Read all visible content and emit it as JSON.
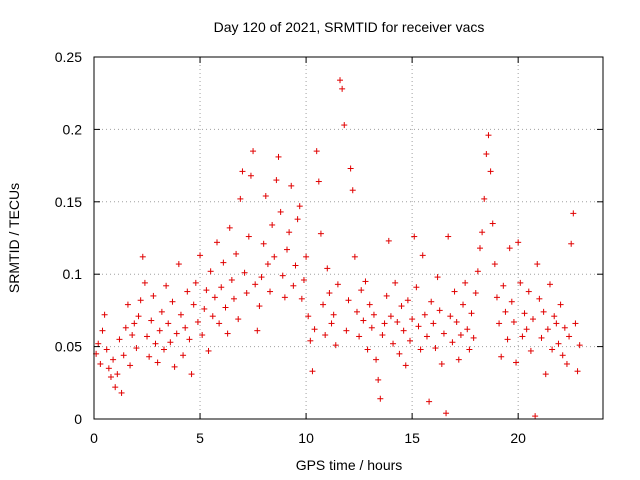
{
  "chart_data": {
    "type": "scatter",
    "title": "Day 120 of 2021, SRMTID for receiver vacs",
    "xlabel": "GPS time / hours",
    "ylabel": "SRMTID / TECUs",
    "xlim": [
      0,
      24
    ],
    "ylim": [
      0,
      0.25
    ],
    "xticks": [
      0,
      5,
      10,
      15,
      20
    ],
    "xtick_labels": [
      "0",
      "5",
      "10",
      "15",
      "20"
    ],
    "yticks": [
      0,
      0.05,
      0.1,
      0.15,
      0.2,
      0.25
    ],
    "ytick_labels": [
      "0",
      "0.05",
      "0.1",
      "0.15",
      "0.2",
      "0.25"
    ],
    "grid": true,
    "marker": "+",
    "color": "#e00000",
    "series": [
      {
        "name": "SRMTID",
        "points": [
          [
            0.1,
            0.045
          ],
          [
            0.2,
            0.052
          ],
          [
            0.3,
            0.038
          ],
          [
            0.4,
            0.061
          ],
          [
            0.5,
            0.072
          ],
          [
            0.6,
            0.048
          ],
          [
            0.7,
            0.035
          ],
          [
            0.8,
            0.029
          ],
          [
            0.9,
            0.041
          ],
          [
            1.0,
            0.022
          ],
          [
            1.1,
            0.031
          ],
          [
            1.2,
            0.055
          ],
          [
            1.3,
            0.018
          ],
          [
            1.4,
            0.044
          ],
          [
            1.5,
            0.063
          ],
          [
            1.6,
            0.079
          ],
          [
            1.7,
            0.037
          ],
          [
            1.8,
            0.058
          ],
          [
            1.9,
            0.066
          ],
          [
            2.0,
            0.049
          ],
          [
            2.1,
            0.071
          ],
          [
            2.2,
            0.082
          ],
          [
            2.3,
            0.112
          ],
          [
            2.4,
            0.094
          ],
          [
            2.5,
            0.057
          ],
          [
            2.6,
            0.043
          ],
          [
            2.7,
            0.068
          ],
          [
            2.8,
            0.085
          ],
          [
            2.9,
            0.052
          ],
          [
            3.0,
            0.039
          ],
          [
            3.1,
            0.061
          ],
          [
            3.2,
            0.074
          ],
          [
            3.3,
            0.048
          ],
          [
            3.4,
            0.092
          ],
          [
            3.5,
            0.066
          ],
          [
            3.6,
            0.053
          ],
          [
            3.7,
            0.081
          ],
          [
            3.8,
            0.036
          ],
          [
            3.9,
            0.059
          ],
          [
            4.0,
            0.107
          ],
          [
            4.1,
            0.072
          ],
          [
            4.2,
            0.044
          ],
          [
            4.3,
            0.063
          ],
          [
            4.4,
            0.088
          ],
          [
            4.5,
            0.055
          ],
          [
            4.6,
            0.031
          ],
          [
            4.7,
            0.079
          ],
          [
            4.8,
            0.094
          ],
          [
            4.9,
            0.067
          ],
          [
            5.0,
            0.113
          ],
          [
            5.1,
            0.058
          ],
          [
            5.2,
            0.076
          ],
          [
            5.3,
            0.089
          ],
          [
            5.4,
            0.047
          ],
          [
            5.5,
            0.102
          ],
          [
            5.6,
            0.071
          ],
          [
            5.7,
            0.084
          ],
          [
            5.8,
            0.122
          ],
          [
            5.9,
            0.066
          ],
          [
            6.0,
            0.091
          ],
          [
            6.1,
            0.108
          ],
          [
            6.2,
            0.077
          ],
          [
            6.3,
            0.059
          ],
          [
            6.4,
            0.132
          ],
          [
            6.5,
            0.096
          ],
          [
            6.6,
            0.083
          ],
          [
            6.7,
            0.114
          ],
          [
            6.8,
            0.069
          ],
          [
            6.9,
            0.152
          ],
          [
            7.0,
            0.171
          ],
          [
            7.1,
            0.101
          ],
          [
            7.2,
            0.087
          ],
          [
            7.3,
            0.126
          ],
          [
            7.4,
            0.168
          ],
          [
            7.5,
            0.185
          ],
          [
            7.6,
            0.093
          ],
          [
            7.7,
            0.061
          ],
          [
            7.8,
            0.078
          ],
          [
            7.9,
            0.098
          ],
          [
            8.0,
            0.121
          ],
          [
            8.1,
            0.154
          ],
          [
            8.2,
            0.107
          ],
          [
            8.3,
            0.088
          ],
          [
            8.4,
            0.134
          ],
          [
            8.5,
            0.112
          ],
          [
            8.6,
            0.165
          ],
          [
            8.7,
            0.181
          ],
          [
            8.8,
            0.143
          ],
          [
            8.9,
            0.099
          ],
          [
            9.0,
            0.084
          ],
          [
            9.1,
            0.117
          ],
          [
            9.2,
            0.129
          ],
          [
            9.3,
            0.161
          ],
          [
            9.4,
            0.092
          ],
          [
            9.5,
            0.106
          ],
          [
            9.6,
            0.138
          ],
          [
            9.7,
            0.147
          ],
          [
            9.8,
            0.083
          ],
          [
            9.9,
            0.096
          ],
          [
            10.0,
            0.112
          ],
          [
            10.1,
            0.071
          ],
          [
            10.2,
            0.054
          ],
          [
            10.3,
            0.033
          ],
          [
            10.4,
            0.062
          ],
          [
            10.5,
            0.185
          ],
          [
            10.6,
            0.164
          ],
          [
            10.7,
            0.128
          ],
          [
            10.8,
            0.079
          ],
          [
            10.9,
            0.058
          ],
          [
            11.0,
            0.104
          ],
          [
            11.1,
            0.087
          ],
          [
            11.2,
            0.066
          ],
          [
            11.3,
            0.072
          ],
          [
            11.4,
            0.051
          ],
          [
            11.5,
            0.093
          ],
          [
            11.6,
            0.234
          ],
          [
            11.7,
            0.228
          ],
          [
            11.8,
            0.203
          ],
          [
            11.9,
            0.061
          ],
          [
            12.0,
            0.082
          ],
          [
            12.1,
            0.173
          ],
          [
            12.2,
            0.158
          ],
          [
            12.3,
            0.112
          ],
          [
            12.4,
            0.074
          ],
          [
            12.5,
            0.057
          ],
          [
            12.6,
            0.089
          ],
          [
            12.7,
            0.068
          ],
          [
            12.8,
            0.095
          ],
          [
            12.9,
            0.048
          ],
          [
            13.0,
            0.079
          ],
          [
            13.1,
            0.063
          ],
          [
            13.2,
            0.072
          ],
          [
            13.3,
            0.041
          ],
          [
            13.4,
            0.027
          ],
          [
            13.5,
            0.014
          ],
          [
            13.6,
            0.058
          ],
          [
            13.7,
            0.066
          ],
          [
            13.8,
            0.085
          ],
          [
            13.9,
            0.123
          ],
          [
            14.0,
            0.071
          ],
          [
            14.1,
            0.052
          ],
          [
            14.2,
            0.094
          ],
          [
            14.3,
            0.067
          ],
          [
            14.4,
            0.045
          ],
          [
            14.5,
            0.078
          ],
          [
            14.6,
            0.061
          ],
          [
            14.7,
            0.037
          ],
          [
            14.8,
            0.082
          ],
          [
            14.9,
            0.054
          ],
          [
            15.0,
            0.069
          ],
          [
            15.1,
            0.126
          ],
          [
            15.2,
            0.091
          ],
          [
            15.3,
            0.064
          ],
          [
            15.4,
            0.048
          ],
          [
            15.5,
            0.113
          ],
          [
            15.6,
            0.072
          ],
          [
            15.7,
            0.057
          ],
          [
            15.8,
            0.012
          ],
          [
            15.9,
            0.081
          ],
          [
            16.0,
            0.066
          ],
          [
            16.1,
            0.049
          ],
          [
            16.2,
            0.098
          ],
          [
            16.3,
            0.075
          ],
          [
            16.4,
            0.038
          ],
          [
            16.5,
            0.059
          ],
          [
            16.6,
            0.004
          ],
          [
            16.7,
            0.126
          ],
          [
            16.8,
            0.071
          ],
          [
            16.9,
            0.053
          ],
          [
            17.0,
            0.088
          ],
          [
            17.1,
            0.067
          ],
          [
            17.2,
            0.041
          ],
          [
            17.3,
            0.058
          ],
          [
            17.4,
            0.079
          ],
          [
            17.5,
            0.094
          ],
          [
            17.6,
            0.062
          ],
          [
            17.7,
            0.048
          ],
          [
            17.8,
            0.073
          ],
          [
            17.9,
            0.056
          ],
          [
            18.0,
            0.087
          ],
          [
            18.1,
            0.102
          ],
          [
            18.2,
            0.118
          ],
          [
            18.3,
            0.129
          ],
          [
            18.4,
            0.152
          ],
          [
            18.5,
            0.183
          ],
          [
            18.6,
            0.196
          ],
          [
            18.7,
            0.171
          ],
          [
            18.8,
            0.135
          ],
          [
            18.9,
            0.107
          ],
          [
            19.0,
            0.084
          ],
          [
            19.1,
            0.066
          ],
          [
            19.2,
            0.043
          ],
          [
            19.3,
            0.092
          ],
          [
            19.4,
            0.074
          ],
          [
            19.5,
            0.055
          ],
          [
            19.6,
            0.118
          ],
          [
            19.7,
            0.081
          ],
          [
            19.8,
            0.067
          ],
          [
            19.9,
            0.039
          ],
          [
            20.0,
            0.122
          ],
          [
            20.1,
            0.094
          ],
          [
            20.2,
            0.057
          ],
          [
            20.3,
            0.073
          ],
          [
            20.4,
            0.062
          ],
          [
            20.5,
            0.088
          ],
          [
            20.6,
            0.047
          ],
          [
            20.7,
            0.069
          ],
          [
            20.8,
            0.002
          ],
          [
            20.9,
            0.107
          ],
          [
            21.0,
            0.083
          ],
          [
            21.1,
            0.056
          ],
          [
            21.2,
            0.074
          ],
          [
            21.3,
            0.031
          ],
          [
            21.4,
            0.062
          ],
          [
            21.5,
            0.093
          ],
          [
            21.6,
            0.048
          ],
          [
            21.7,
            0.071
          ],
          [
            21.8,
            0.066
          ],
          [
            21.9,
            0.052
          ],
          [
            22.0,
            0.079
          ],
          [
            22.1,
            0.044
          ],
          [
            22.2,
            0.063
          ],
          [
            22.3,
            0.038
          ],
          [
            22.4,
            0.057
          ],
          [
            22.5,
            0.121
          ],
          [
            22.6,
            0.142
          ],
          [
            22.7,
            0.066
          ],
          [
            22.8,
            0.033
          ],
          [
            22.9,
            0.051
          ]
        ]
      }
    ]
  }
}
